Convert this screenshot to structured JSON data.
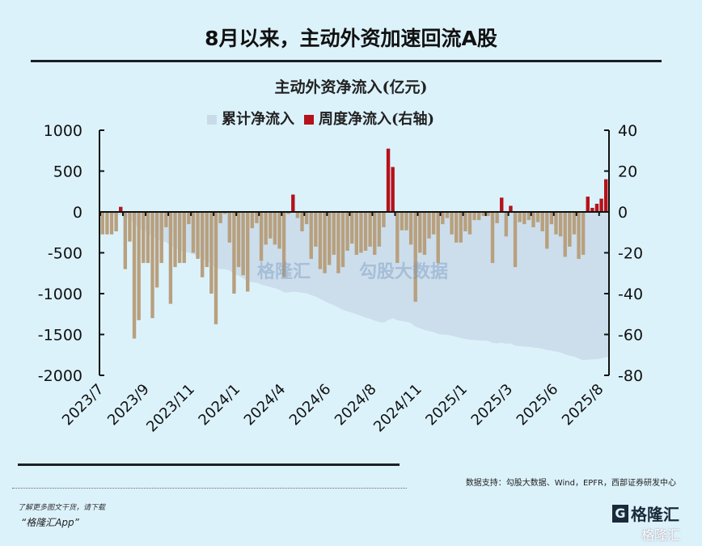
{
  "title": "8月以来，主动外资加速回流A股",
  "chart_data": {
    "type": "bar+area",
    "title": "主动外资净流入(亿元)",
    "legend": [
      {
        "name": "累计净流入",
        "color": "#c9dbe9",
        "axis": "left"
      },
      {
        "name": "周度净流入(右轴)",
        "color": "#b5121b",
        "axis": "right"
      }
    ],
    "legend_placement": "top",
    "left_axis": {
      "ylim": [
        -2000,
        1000
      ],
      "ticks": [
        1000,
        500,
        0,
        -500,
        -1000,
        -1500,
        -2000
      ]
    },
    "right_axis": {
      "ylim": [
        -80,
        40
      ],
      "ticks": [
        40,
        20,
        0,
        -20,
        -40,
        -60,
        -80
      ]
    },
    "x_tick_labels": [
      "2023/7",
      "2023/9",
      "2023/11",
      "2024/1",
      "2024/4",
      "2024/6",
      "2024/8",
      "2024/11",
      "2025/1",
      "2025/3",
      "2025/6",
      "2025/8"
    ],
    "weekly_net_inflow": [
      -11,
      -11,
      -11,
      -9.5,
      2.5,
      -28,
      -14.5,
      -62,
      -53,
      -25,
      -25,
      -52,
      -37,
      -25,
      -7.5,
      -45,
      -27,
      -25,
      -25,
      -6,
      -20,
      -23,
      -32,
      -27,
      -40,
      -55,
      -5.5,
      -1,
      -15,
      -40,
      -27,
      -31,
      -39,
      -8,
      -5.5,
      -24,
      -16,
      -13,
      -16,
      -18,
      -32,
      -1,
      8.5,
      -3,
      -9.5,
      -6,
      -23,
      -17,
      -28,
      -30,
      -26,
      -21,
      -30,
      -27,
      -19,
      -15.5,
      -21,
      -20,
      -19,
      -17,
      -21,
      -17,
      -7.5,
      31,
      22,
      -25,
      -9,
      -9,
      -16,
      -44,
      -20,
      -21,
      -13,
      -11,
      -25,
      -6,
      -3,
      -11,
      -15,
      -15,
      -9.5,
      -11,
      -4,
      -4,
      -2,
      -2,
      -25,
      -5.5,
      7,
      -12,
      3,
      -27,
      -5,
      -6,
      -4,
      -7.5,
      -5,
      -9.5,
      -18,
      -6,
      -11,
      -12,
      -22,
      -17,
      -11,
      -23,
      -21,
      7.5,
      2,
      4,
      6.5,
      16
    ],
    "colors": {
      "positive": "#b5121b",
      "negative": "#b8a07e",
      "cumulative": "#c9dbe9"
    }
  },
  "watermarks": [
    "格隆汇",
    "勾股大数据"
  ],
  "footer": {
    "source": "数据支持：勾股大数据、Wind，EPFR，西部证券研发中心",
    "promo_line1": "了解更多图文干货，请下载",
    "promo_line2": "“格隆汇App”",
    "logo": "格隆汇"
  }
}
